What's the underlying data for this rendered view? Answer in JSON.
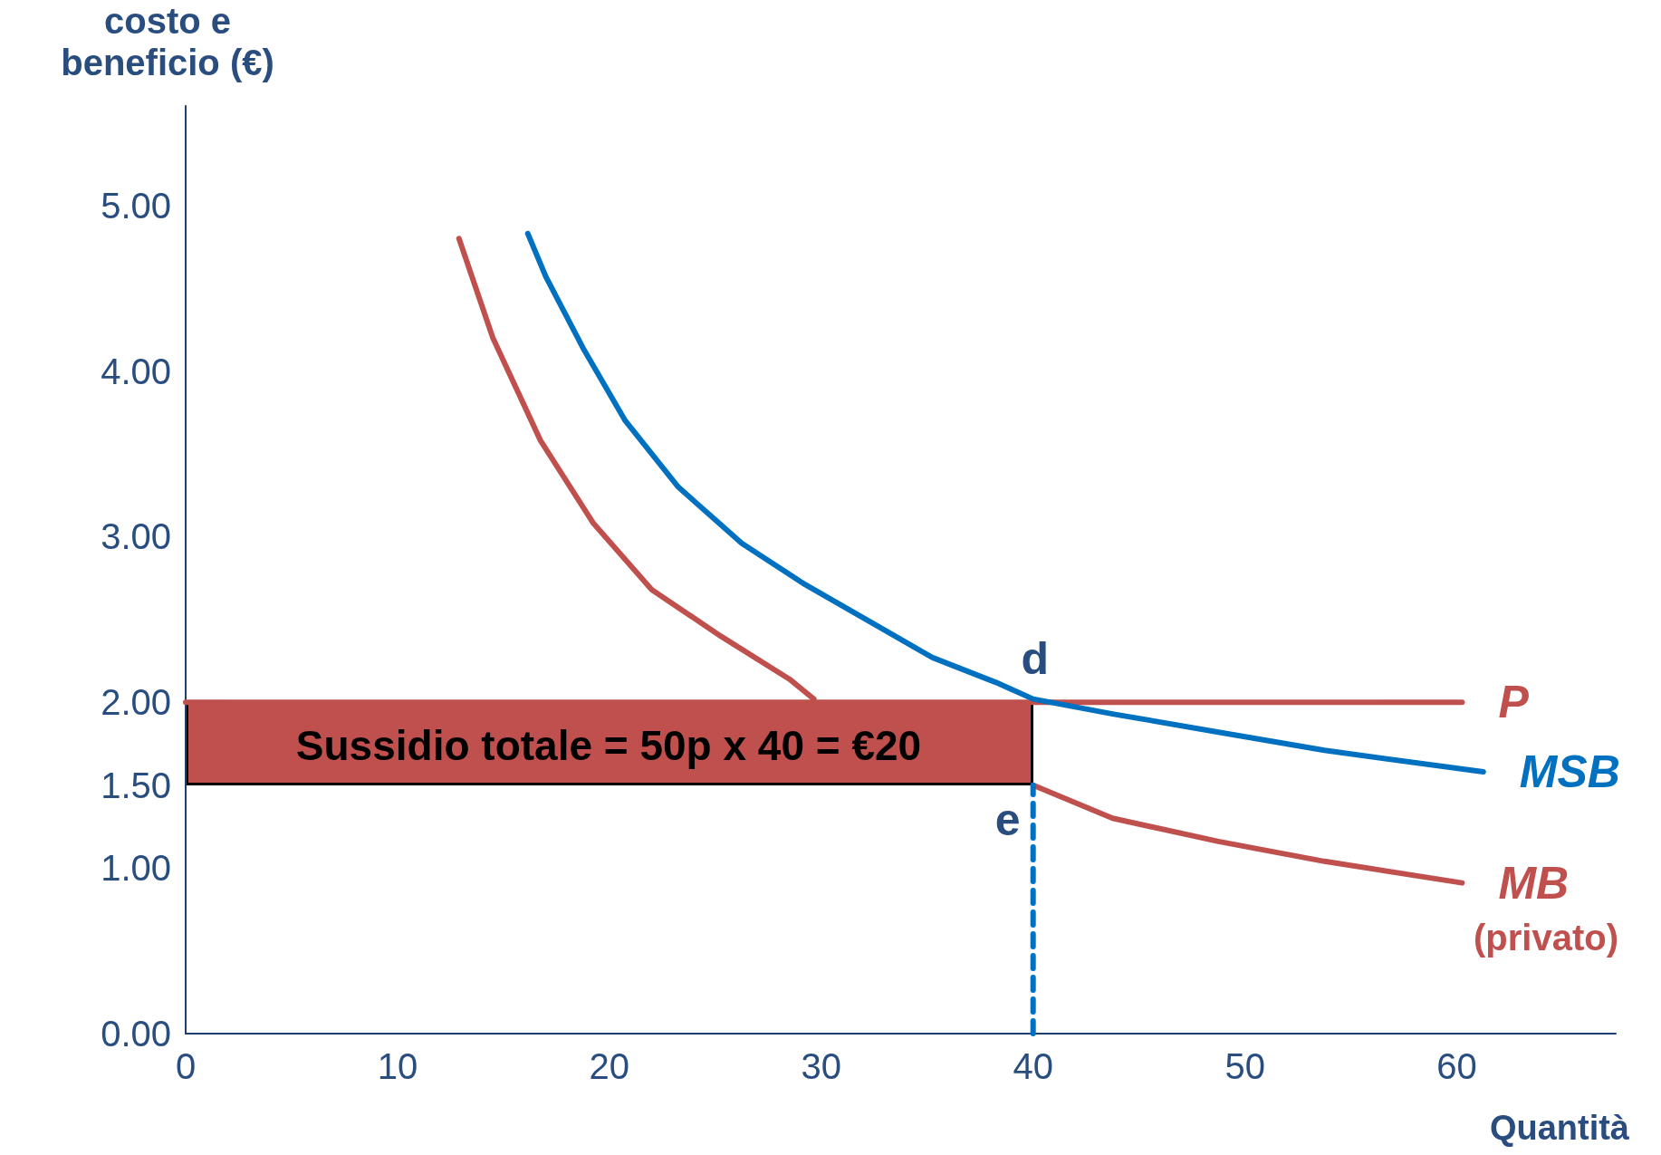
{
  "chart_data": {
    "type": "line",
    "xlabel": "Quantità",
    "ylabel": "costo e\nbeneficio (€)",
    "xlim": [
      0,
      67.5
    ],
    "ylim": [
      0,
      5.6
    ],
    "xticks": [
      0,
      10,
      20,
      30,
      40,
      50,
      60
    ],
    "yticks": [
      {
        "value": 0,
        "label": "0.00"
      },
      {
        "value": 1,
        "label": "1.00"
      },
      {
        "value": 1.5,
        "label": "1.50"
      },
      {
        "value": 2,
        "label": "2.00"
      },
      {
        "value": 3,
        "label": "3.00"
      },
      {
        "value": 4,
        "label": "4.00"
      },
      {
        "value": 5,
        "label": "5.00"
      }
    ],
    "grid": false,
    "legend": false,
    "marker": "none",
    "series": [
      {
        "name": "P",
        "color": "#c0504d",
        "x": [
          0,
          60.25
        ],
        "values": [
          2.0,
          2.0
        ]
      },
      {
        "name": "MB",
        "color": "#c0504d",
        "x": [
          12.9,
          14.5,
          16.75,
          19.25,
          22,
          25.25,
          28.5,
          29.65,
          35,
          40,
          43.75,
          48.75,
          53.75,
          60.25
        ],
        "values": [
          4.8,
          4.2,
          3.58,
          3.08,
          2.68,
          2.4,
          2.14,
          2.02,
          null,
          1.5,
          1.3,
          1.16,
          1.04,
          0.91
        ]
      },
      {
        "name": "MSB",
        "color": "#0070c0",
        "x": [
          16.15,
          17,
          18.75,
          20.75,
          23.25,
          26.25,
          29.25,
          32.25,
          35.25,
          38.25,
          40,
          43.75,
          48.75,
          53.75,
          61.25
        ],
        "values": [
          4.83,
          4.57,
          4.14,
          3.7,
          3.3,
          2.96,
          2.71,
          2.49,
          2.27,
          2.12,
          2.02,
          1.93,
          1.82,
          1.71,
          1.58
        ]
      },
      {
        "color": "#0070c0",
        "line_style": "dashed",
        "x": [
          40,
          40
        ],
        "values": [
          0,
          1.5
        ]
      }
    ],
    "annotations": [
      "Sussidio totale = 50p x 40 = €20",
      {
        "text": "d",
        "x": 40,
        "y": 2.02
      },
      {
        "text": "e",
        "x": 40,
        "y": 1.5
      },
      "(privato)"
    ]
  }
}
